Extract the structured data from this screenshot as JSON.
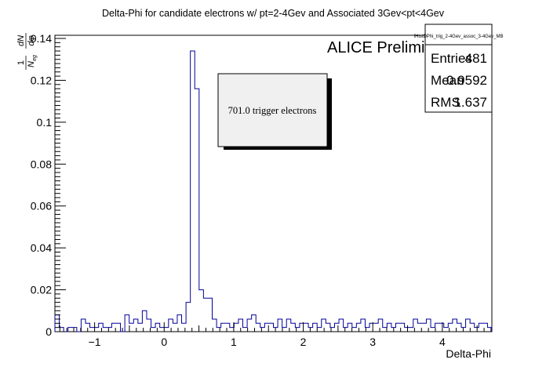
{
  "chart_data": {
    "type": "histogram",
    "title": "Delta-Phi for candidate electrons w/ pt=2-4Gev and Associated 3Gev<pt<4Gev",
    "xlabel": "Delta-Phi",
    "ylabel": {
      "num": "1",
      "den": "N",
      "den_sub": "eg",
      "frac_num": "dN",
      "frac_den": "dφ"
    },
    "xlim": [
      -1.5708,
      4.7124
    ],
    "ylim": [
      0,
      0.1415
    ],
    "x_ticks": [
      -1,
      0,
      1,
      2,
      3,
      4
    ],
    "x_tick_labels": [
      "−1",
      "0",
      "1",
      "2",
      "3",
      "4"
    ],
    "y_ticks": [
      0,
      0.02,
      0.04,
      0.06,
      0.08,
      0.1,
      0.12,
      0.14
    ],
    "y_tick_labels": [
      "0",
      "0.02",
      "0.04",
      "0.06",
      "0.08",
      "0.1",
      "0.12",
      "0.14"
    ],
    "bin_width": 0.0628,
    "series": [
      {
        "color": "#000099",
        "values": [
          0.008,
          0.002,
          0.0,
          0.002,
          0.002,
          0.0,
          0.006,
          0.004,
          0.002,
          0.002,
          0.004,
          0.002,
          0.002,
          0.004,
          0.004,
          0.0,
          0.008,
          0.004,
          0.006,
          0.004,
          0.01,
          0.006,
          0.002,
          0.004,
          0.002,
          0.002,
          0.006,
          0.004,
          0.008,
          0.004,
          0.014,
          0.134,
          0.116,
          0.02,
          0.016,
          0.016,
          0.006,
          0.002,
          0.004,
          0.004,
          0.002,
          0.004,
          0.006,
          0.002,
          0.006,
          0.008,
          0.004,
          0.002,
          0.004,
          0.004,
          0.002,
          0.006,
          0.002,
          0.006,
          0.004,
          0.002,
          0.004,
          0.004,
          0.002,
          0.004,
          0.002,
          0.006,
          0.004,
          0.002,
          0.004,
          0.006,
          0.002,
          0.004,
          0.002,
          0.004,
          0.006,
          0.002,
          0.004,
          0.004,
          0.006,
          0.002,
          0.004,
          0.002,
          0.004,
          0.004,
          0.002,
          0.002,
          0.006,
          0.004,
          0.004,
          0.006,
          0.002,
          0.004,
          0.004,
          0.002,
          0.004,
          0.006,
          0.004,
          0.002,
          0.006,
          0.004,
          0.002,
          0.004,
          0.004,
          0.002
        ]
      }
    ],
    "stats_box": {
      "name": "fHistDPhi_trig_2-4Gev_assoc_3-4Gev_MB",
      "rows": [
        {
          "label": "Entries",
          "value": "481"
        },
        {
          "label": "Mean",
          "value": "0.9592"
        },
        {
          "label": "RMS",
          "value": "1.637"
        }
      ]
    },
    "annotations": {
      "preliminary": "ALICE Preliminary",
      "trigger_label": "701.0 trigger electrons"
    }
  }
}
